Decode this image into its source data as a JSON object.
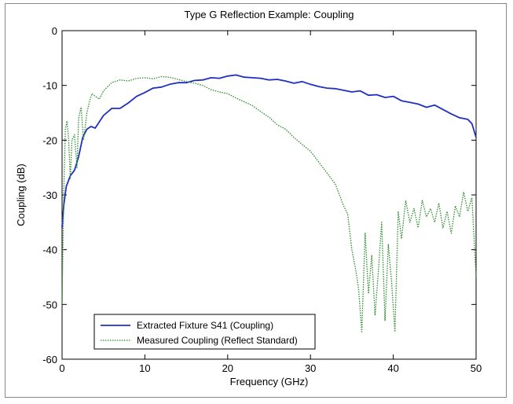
{
  "chart_data": {
    "type": "line",
    "title": "Type G Reflection Example: Coupling",
    "xlabel": "Frequency (GHz)",
    "ylabel": "Coupling (dB)",
    "xlim": [
      0,
      50
    ],
    "ylim": [
      -60,
      0
    ],
    "x_ticks": [
      "0",
      "10",
      "20",
      "30",
      "40",
      "50"
    ],
    "y_ticks": [
      "0",
      "-10",
      "-20",
      "-30",
      "-40",
      "-50",
      "-60"
    ],
    "grid": false,
    "legend_position": "bottom-left",
    "series": [
      {
        "name": "Extracted Fixture S41 (Coupling)",
        "color": "#1f2fbf",
        "style": "solid",
        "x": [
          0,
          0.2,
          0.5,
          1,
          1.5,
          2,
          2.5,
          3,
          3.5,
          4,
          5,
          6,
          7,
          8,
          9,
          10,
          11,
          12,
          13,
          14,
          15,
          16,
          17,
          18,
          19,
          20,
          21,
          22,
          23,
          24,
          25,
          26,
          27,
          28,
          29,
          30,
          31,
          32,
          33,
          34,
          35,
          36,
          37,
          38,
          39,
          40,
          41,
          42,
          43,
          44,
          45,
          46,
          47,
          48,
          49,
          49.5,
          50
        ],
        "y": [
          -36,
          -32,
          -28.5,
          -26.5,
          -25.5,
          -23,
          -19.5,
          -18,
          -17.5,
          -17.8,
          -15.5,
          -14.2,
          -14.2,
          -13.2,
          -12,
          -11.3,
          -10.5,
          -10.3,
          -9.8,
          -9.5,
          -9.5,
          -9.1,
          -9.0,
          -8.6,
          -8.7,
          -8.3,
          -8.1,
          -8.5,
          -8.6,
          -8.7,
          -9.0,
          -8.9,
          -9.2,
          -9.6,
          -9.3,
          -9.8,
          -10.2,
          -10.5,
          -10.6,
          -10.9,
          -11.2,
          -11.0,
          -11.8,
          -11.7,
          -12.2,
          -12.0,
          -12.8,
          -13.1,
          -13.4,
          -14.0,
          -13.6,
          -14.4,
          -15.2,
          -15.9,
          -16.2,
          -17.0,
          -19.5
        ]
      },
      {
        "name": "Measured Coupling (Reflect Standard)",
        "color": "#2e8b2e",
        "style": "dotted",
        "x": [
          0,
          0.2,
          0.4,
          0.6,
          0.8,
          1.0,
          1.2,
          1.5,
          1.8,
          2.0,
          2.3,
          2.6,
          3.0,
          3.3,
          3.6,
          4.0,
          4.5,
          5,
          6,
          7,
          8,
          9,
          10,
          11,
          12,
          13,
          14,
          15,
          16,
          17,
          18,
          19,
          20,
          21,
          22,
          23,
          24,
          25,
          26,
          27,
          28,
          29,
          30,
          31,
          32,
          33,
          33.5,
          34,
          34.5,
          35,
          35.5,
          35.8,
          36.2,
          36.6,
          37,
          37.4,
          37.8,
          38.2,
          38.6,
          39,
          39.4,
          39.8,
          40.2,
          40.6,
          41,
          41.5,
          42,
          42.5,
          43,
          43.5,
          44,
          44.5,
          45,
          45.5,
          46,
          46.5,
          47,
          47.5,
          48,
          48.5,
          49,
          49.5,
          50
        ],
        "y": [
          -50,
          -30,
          -18,
          -16.5,
          -20,
          -27,
          -20,
          -19,
          -25,
          -16,
          -14,
          -20,
          -15,
          -13,
          -11.5,
          -12,
          -12.5,
          -11,
          -9.5,
          -9.0,
          -9.2,
          -8.7,
          -8.6,
          -8.8,
          -8.4,
          -8.5,
          -8.9,
          -9.3,
          -9.6,
          -10.0,
          -10.8,
          -11.2,
          -11.5,
          -12.3,
          -13.0,
          -13.7,
          -14.8,
          -15.8,
          -17.2,
          -18.0,
          -19.5,
          -20.8,
          -22.0,
          -24.0,
          -26.0,
          -28.0,
          -30.0,
          -32.0,
          -33.5,
          -40.0,
          -44.0,
          -47.0,
          -55.0,
          -37.0,
          -48.0,
          -41.0,
          -52.0,
          -44.0,
          -35.0,
          -53.0,
          -39.0,
          -46.0,
          -55.0,
          -33.0,
          -38.0,
          -31.0,
          -35.0,
          -32.5,
          -36.0,
          -31.0,
          -34.0,
          -32.5,
          -35.0,
          -31.5,
          -36.0,
          -33.0,
          -37.0,
          -32.0,
          -34.0,
          -29.5,
          -33.0,
          -30.5,
          -45.0
        ]
      }
    ]
  }
}
